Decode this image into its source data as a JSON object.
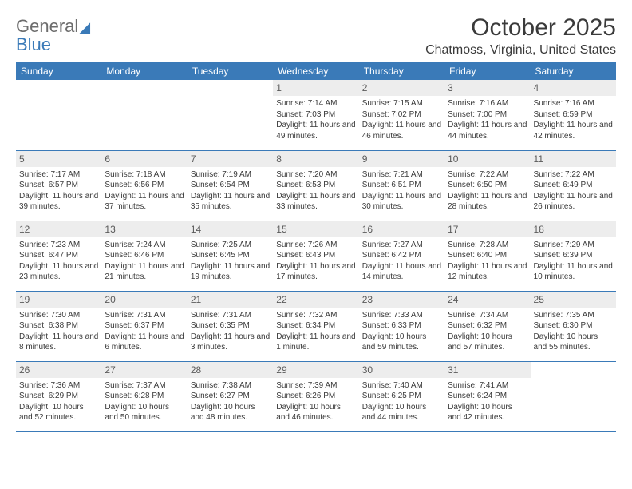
{
  "logo": {
    "line1": "General",
    "line2": "Blue"
  },
  "title": "October 2025",
  "location": "Chatmoss, Virginia, United States",
  "columns": [
    "Sunday",
    "Monday",
    "Tuesday",
    "Wednesday",
    "Thursday",
    "Friday",
    "Saturday"
  ],
  "colors": {
    "header_bg": "#3a7ab8",
    "header_text": "#ffffff",
    "daynum_bg": "#ededed",
    "border": "#3a7ab8",
    "body_text": "#3a3a3a",
    "logo_gray": "#6d6d6d",
    "logo_blue": "#3a7ab8"
  },
  "weeks": [
    [
      null,
      null,
      null,
      {
        "d": "1",
        "sr": "7:14 AM",
        "ss": "7:03 PM",
        "dl": "11 hours and 49 minutes."
      },
      {
        "d": "2",
        "sr": "7:15 AM",
        "ss": "7:02 PM",
        "dl": "11 hours and 46 minutes."
      },
      {
        "d": "3",
        "sr": "7:16 AM",
        "ss": "7:00 PM",
        "dl": "11 hours and 44 minutes."
      },
      {
        "d": "4",
        "sr": "7:16 AM",
        "ss": "6:59 PM",
        "dl": "11 hours and 42 minutes."
      }
    ],
    [
      {
        "d": "5",
        "sr": "7:17 AM",
        "ss": "6:57 PM",
        "dl": "11 hours and 39 minutes."
      },
      {
        "d": "6",
        "sr": "7:18 AM",
        "ss": "6:56 PM",
        "dl": "11 hours and 37 minutes."
      },
      {
        "d": "7",
        "sr": "7:19 AM",
        "ss": "6:54 PM",
        "dl": "11 hours and 35 minutes."
      },
      {
        "d": "8",
        "sr": "7:20 AM",
        "ss": "6:53 PM",
        "dl": "11 hours and 33 minutes."
      },
      {
        "d": "9",
        "sr": "7:21 AM",
        "ss": "6:51 PM",
        "dl": "11 hours and 30 minutes."
      },
      {
        "d": "10",
        "sr": "7:22 AM",
        "ss": "6:50 PM",
        "dl": "11 hours and 28 minutes."
      },
      {
        "d": "11",
        "sr": "7:22 AM",
        "ss": "6:49 PM",
        "dl": "11 hours and 26 minutes."
      }
    ],
    [
      {
        "d": "12",
        "sr": "7:23 AM",
        "ss": "6:47 PM",
        "dl": "11 hours and 23 minutes."
      },
      {
        "d": "13",
        "sr": "7:24 AM",
        "ss": "6:46 PM",
        "dl": "11 hours and 21 minutes."
      },
      {
        "d": "14",
        "sr": "7:25 AM",
        "ss": "6:45 PM",
        "dl": "11 hours and 19 minutes."
      },
      {
        "d": "15",
        "sr": "7:26 AM",
        "ss": "6:43 PM",
        "dl": "11 hours and 17 minutes."
      },
      {
        "d": "16",
        "sr": "7:27 AM",
        "ss": "6:42 PM",
        "dl": "11 hours and 14 minutes."
      },
      {
        "d": "17",
        "sr": "7:28 AM",
        "ss": "6:40 PM",
        "dl": "11 hours and 12 minutes."
      },
      {
        "d": "18",
        "sr": "7:29 AM",
        "ss": "6:39 PM",
        "dl": "11 hours and 10 minutes."
      }
    ],
    [
      {
        "d": "19",
        "sr": "7:30 AM",
        "ss": "6:38 PM",
        "dl": "11 hours and 8 minutes."
      },
      {
        "d": "20",
        "sr": "7:31 AM",
        "ss": "6:37 PM",
        "dl": "11 hours and 6 minutes."
      },
      {
        "d": "21",
        "sr": "7:31 AM",
        "ss": "6:35 PM",
        "dl": "11 hours and 3 minutes."
      },
      {
        "d": "22",
        "sr": "7:32 AM",
        "ss": "6:34 PM",
        "dl": "11 hours and 1 minute."
      },
      {
        "d": "23",
        "sr": "7:33 AM",
        "ss": "6:33 PM",
        "dl": "10 hours and 59 minutes."
      },
      {
        "d": "24",
        "sr": "7:34 AM",
        "ss": "6:32 PM",
        "dl": "10 hours and 57 minutes."
      },
      {
        "d": "25",
        "sr": "7:35 AM",
        "ss": "6:30 PM",
        "dl": "10 hours and 55 minutes."
      }
    ],
    [
      {
        "d": "26",
        "sr": "7:36 AM",
        "ss": "6:29 PM",
        "dl": "10 hours and 52 minutes."
      },
      {
        "d": "27",
        "sr": "7:37 AM",
        "ss": "6:28 PM",
        "dl": "10 hours and 50 minutes."
      },
      {
        "d": "28",
        "sr": "7:38 AM",
        "ss": "6:27 PM",
        "dl": "10 hours and 48 minutes."
      },
      {
        "d": "29",
        "sr": "7:39 AM",
        "ss": "6:26 PM",
        "dl": "10 hours and 46 minutes."
      },
      {
        "d": "30",
        "sr": "7:40 AM",
        "ss": "6:25 PM",
        "dl": "10 hours and 44 minutes."
      },
      {
        "d": "31",
        "sr": "7:41 AM",
        "ss": "6:24 PM",
        "dl": "10 hours and 42 minutes."
      },
      null
    ]
  ],
  "labels": {
    "sunrise": "Sunrise:",
    "sunset": "Sunset:",
    "daylight": "Daylight:"
  }
}
